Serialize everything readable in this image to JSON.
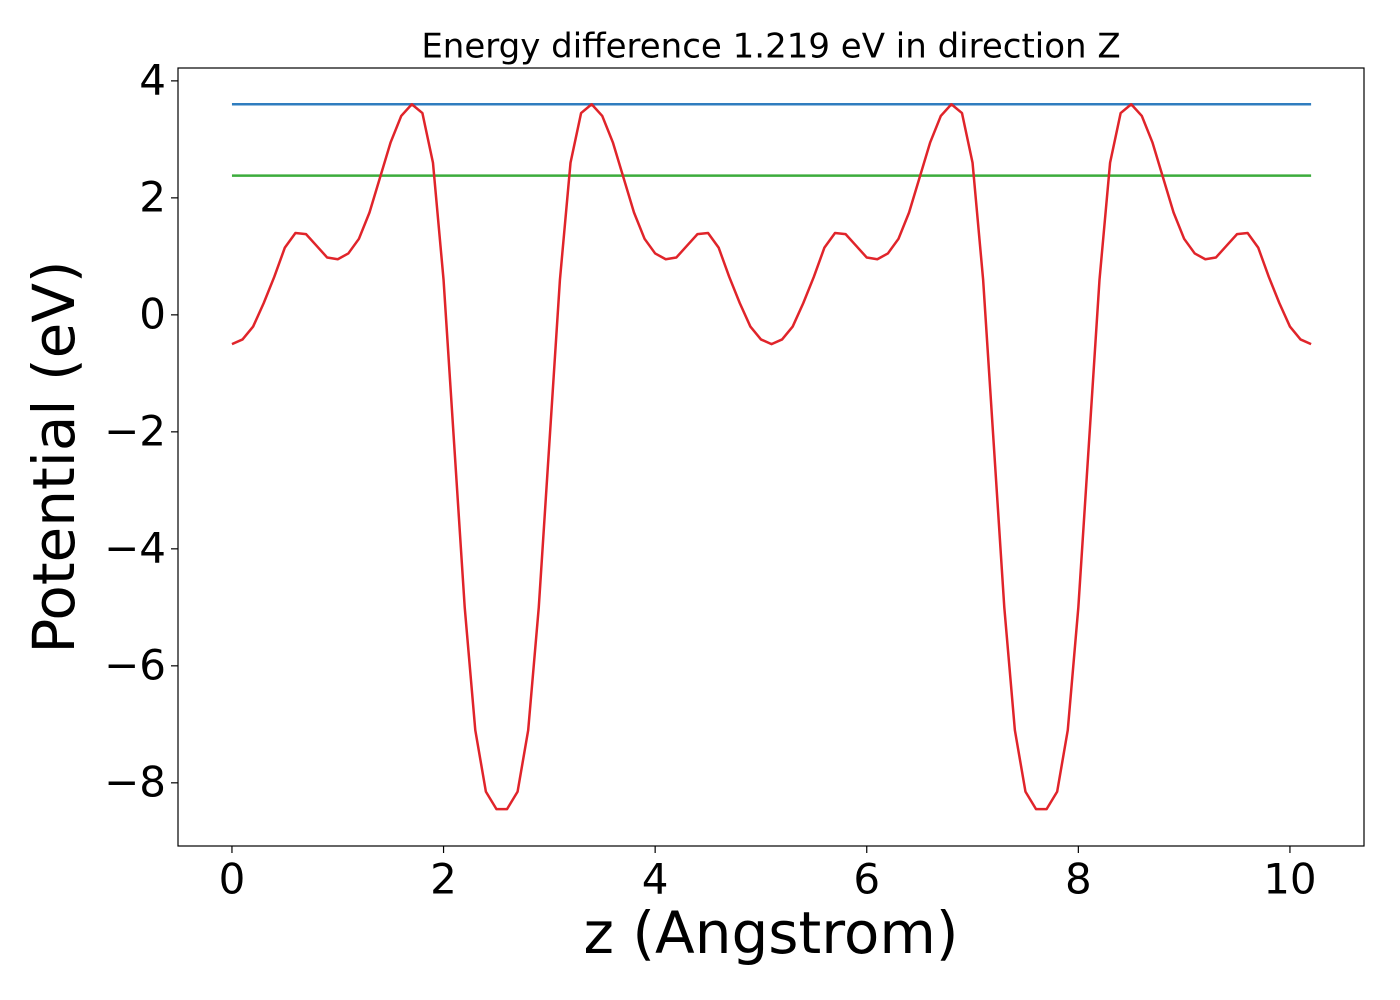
{
  "chart_data": {
    "type": "line",
    "title": "Energy difference 1.219 eV in direction Z",
    "xlabel": "z (Angstrom)",
    "ylabel": "Potential (eV)",
    "xlim": [
      -0.51,
      10.7
    ],
    "ylim": [
      -9.08,
      4.22
    ],
    "xticks": [
      0,
      2,
      4,
      6,
      8,
      10
    ],
    "yticks": [
      {
        "value": -8,
        "label": "−8"
      },
      {
        "value": -6,
        "label": "−6"
      },
      {
        "value": -4,
        "label": "−4"
      },
      {
        "value": -2,
        "label": "−2"
      },
      0,
      2,
      4
    ],
    "grid": false,
    "series": [
      {
        "color": "#2f7dbf",
        "x": [
          0,
          10.2
        ],
        "values": [
          3.6,
          3.6
        ]
      },
      {
        "color": "#3cac3c",
        "x": [
          0,
          10.2
        ],
        "values": [
          2.381,
          2.381
        ]
      },
      {
        "color": "#e0242a",
        "x": [
          0,
          0.1,
          0.2,
          0.3,
          0.4,
          0.5,
          0.6,
          0.7,
          0.8,
          0.9,
          1.0,
          1.1,
          1.2,
          1.3,
          1.4,
          1.5,
          1.6,
          1.7,
          1.8,
          1.9,
          2.0,
          2.1,
          2.2,
          2.3,
          2.4,
          2.5,
          2.6,
          2.7,
          2.8,
          2.9,
          3.0,
          3.1,
          3.2,
          3.3,
          3.4,
          3.5,
          3.6,
          3.7,
          3.8,
          3.9,
          4.0,
          4.1,
          4.2,
          4.3,
          4.4,
          4.5,
          4.6,
          4.7,
          4.8,
          4.9,
          5.0,
          5.1,
          5.2,
          5.3,
          5.4,
          5.5,
          5.6,
          5.7,
          5.8,
          5.9,
          6.0,
          6.1,
          6.2,
          6.3,
          6.4,
          6.5,
          6.6,
          6.7,
          6.8,
          6.9,
          7.0,
          7.1,
          7.2,
          7.3,
          7.4,
          7.5,
          7.6,
          7.7,
          7.8,
          7.9,
          8.0,
          8.1,
          8.2,
          8.3,
          8.4,
          8.5,
          8.6,
          8.7,
          8.8,
          8.9,
          9.0,
          9.1,
          9.2,
          9.3,
          9.4,
          9.5,
          9.6,
          9.7,
          9.8,
          9.9,
          10.0,
          10.1,
          10.2
        ],
        "values": [
          -0.5,
          -0.42,
          -0.2,
          0.2,
          0.65,
          1.15,
          1.4,
          1.38,
          1.18,
          0.98,
          0.95,
          1.05,
          1.3,
          1.75,
          2.35,
          2.95,
          3.4,
          3.6,
          3.45,
          2.6,
          0.6,
          -2.2,
          -5.0,
          -7.1,
          -8.15,
          -8.45,
          -8.45,
          -8.15,
          -7.1,
          -5.0,
          -2.2,
          0.6,
          2.6,
          3.45,
          3.6,
          3.4,
          2.95,
          2.35,
          1.75,
          1.3,
          1.05,
          0.95,
          0.98,
          1.18,
          1.38,
          1.4,
          1.15,
          0.65,
          0.2,
          -0.2,
          -0.42,
          -0.5,
          -0.42,
          -0.2,
          0.2,
          0.65,
          1.15,
          1.4,
          1.38,
          1.18,
          0.98,
          0.95,
          1.05,
          1.3,
          1.75,
          2.35,
          2.95,
          3.4,
          3.6,
          3.45,
          2.6,
          0.6,
          -2.2,
          -5.0,
          -7.1,
          -8.15,
          -8.45,
          -8.45,
          -8.15,
          -7.1,
          -5.0,
          -2.2,
          0.6,
          2.6,
          3.45,
          3.6,
          3.4,
          2.95,
          2.35,
          1.75,
          1.3,
          1.05,
          0.95,
          0.98,
          1.18,
          1.38,
          1.4,
          1.15,
          0.65,
          0.2,
          -0.2,
          -0.42,
          -0.5
        ]
      }
    ]
  }
}
